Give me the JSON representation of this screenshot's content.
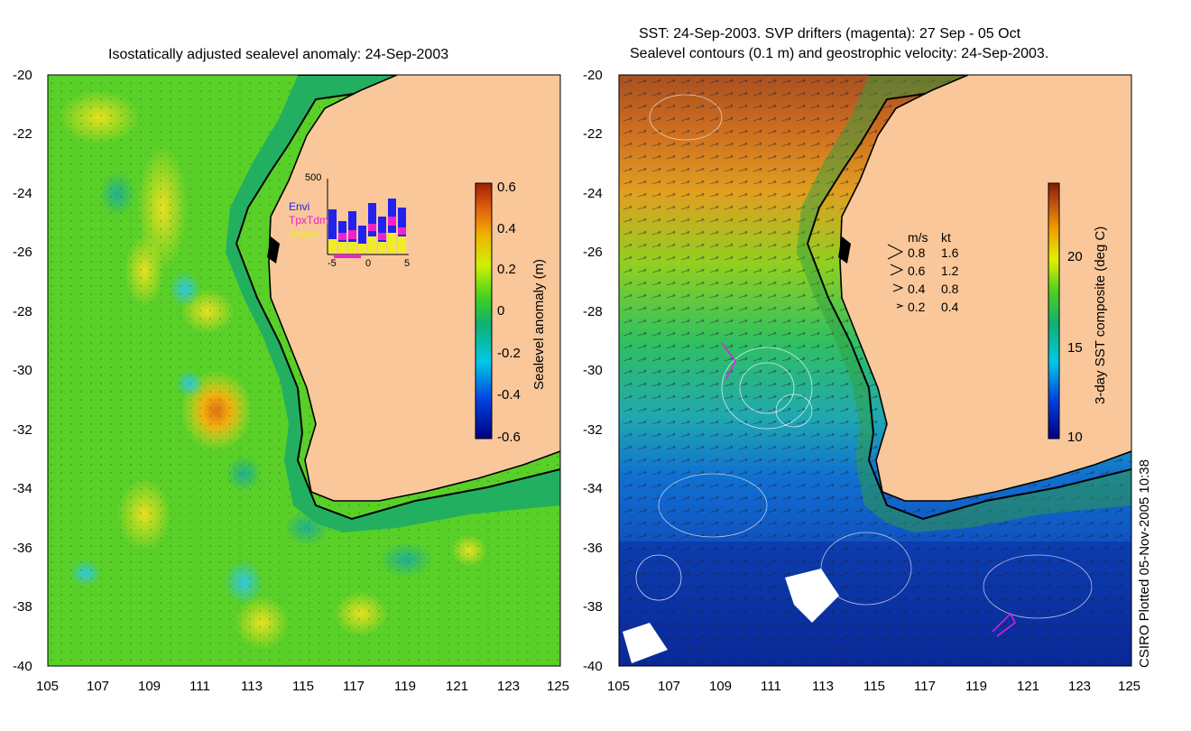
{
  "left_panel": {
    "title": "Isostatically adjusted sealevel anomaly: 24-Sep-2003",
    "y_ticks": [
      "-20",
      "-22",
      "-24",
      "-26",
      "-28",
      "-30",
      "-32",
      "-34",
      "-36",
      "-38",
      "-40"
    ],
    "x_ticks": [
      "105",
      "107",
      "109",
      "111",
      "113",
      "115",
      "117",
      "119",
      "121",
      "123",
      "125"
    ],
    "colorbar": {
      "label": "Sealevel anomaly (m)",
      "ticks": [
        "0.6",
        "0.4",
        "0.2",
        "0",
        "-0.2",
        "-0.4",
        "-0.6"
      ]
    },
    "inset": {
      "y_max_label": "500",
      "x_ticks": [
        "-5",
        "0",
        "5"
      ],
      "legend": [
        {
          "name": "Envi",
          "color": "#2222ee"
        },
        {
          "name": "TpxTdm",
          "color": "#ee22cc"
        },
        {
          "name": "Jason",
          "color": "#eeee22"
        }
      ]
    }
  },
  "right_panel": {
    "title_line1": "SST: 24-Sep-2003. SVP drifters (magenta): 27 Sep - 05 Oct",
    "title_line2": "Sealevel contours (0.1 m) and geostrophic velocity: 24-Sep-2003.",
    "y_ticks": [
      "-20",
      "-22",
      "-24",
      "-26",
      "-28",
      "-30",
      "-32",
      "-34",
      "-36",
      "-38",
      "-40"
    ],
    "x_ticks": [
      "105",
      "107",
      "109",
      "111",
      "113",
      "115",
      "117",
      "119",
      "121",
      "123",
      "125"
    ],
    "speed_legend": {
      "header_ms": "m/s",
      "header_kt": "kt",
      "rows": [
        {
          "ms": "0.8",
          "kt": "1.6"
        },
        {
          "ms": "0.6",
          "kt": "1.2"
        },
        {
          "ms": "0.4",
          "kt": "0.8"
        },
        {
          "ms": "0.2",
          "kt": "0.4"
        }
      ]
    },
    "colorbar": {
      "label": "3-day SST composite (deg C)",
      "ticks": [
        "20",
        "15",
        "10"
      ]
    }
  },
  "credit": "CSIRO Plotted 05-Nov-2005 10:38",
  "colors": {
    "land": "#f9c79a",
    "ssh_base": "#33cc33",
    "sst_warm": "#c05010",
    "sst_cold": "#1040b0",
    "drifter": "#e020e0"
  }
}
